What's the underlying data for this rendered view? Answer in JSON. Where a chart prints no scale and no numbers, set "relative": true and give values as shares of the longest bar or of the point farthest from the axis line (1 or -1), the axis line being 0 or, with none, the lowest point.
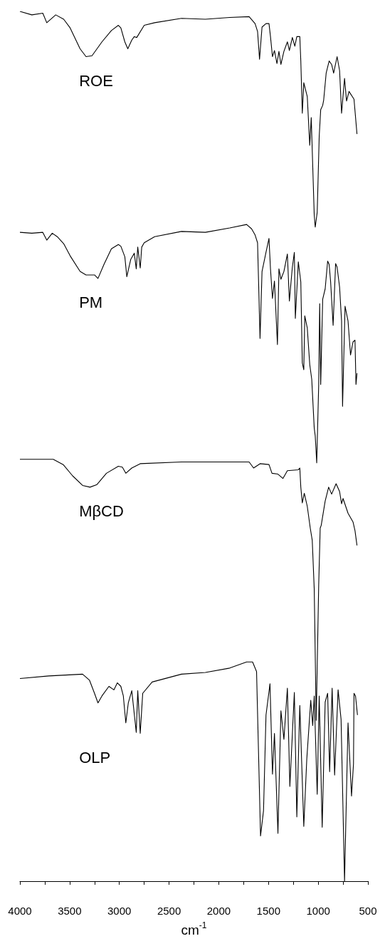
{
  "chart_data": {
    "type": "line",
    "relative": true,
    "xlabel": "cm$^{-1}$",
    "xlim": [
      4000,
      500
    ],
    "xticks": [
      4000,
      {
        "value": 3750,
        "label": null
      },
      3500,
      {
        "value": 3250,
        "label": null
      },
      3000,
      {
        "value": 2750,
        "label": null
      },
      2500,
      {
        "value": 2250,
        "label": null
      },
      2000,
      {
        "value": 1750,
        "label": null
      },
      1500,
      {
        "value": 1250,
        "label": null
      },
      1000,
      {
        "value": 750,
        "label": null
      },
      500
    ],
    "grid": false,
    "legend": false,
    "series": [
      {
        "name": "ROE",
        "color": "#000000",
        "x": [
          4000,
          3880,
          3770,
          3730,
          3640,
          3560,
          3495,
          3395,
          3335,
          3275,
          3175,
          3080,
          3010,
          2985,
          2945,
          2915,
          2875,
          2850,
          2825,
          2750,
          2645,
          2375,
          2135,
          1890,
          1695,
          1635,
          1610,
          1590,
          1565,
          1525,
          1495,
          1480,
          1460,
          1440,
          1415,
          1395,
          1375,
          1345,
          1310,
          1290,
          1260,
          1235,
          1215,
          1185,
          1175,
          1160,
          1145,
          1110,
          1085,
          1070,
          1040,
          1030,
          1010,
          990,
          975,
          955,
          945,
          920,
          890,
          865,
          845,
          810,
          785,
          765,
          735,
          715,
          690,
          640,
          610
        ],
        "values": [
          1.0,
          0.996,
          0.998,
          0.987,
          0.996,
          0.991,
          0.981,
          0.957,
          0.948,
          0.949,
          0.965,
          0.978,
          0.984,
          0.981,
          0.965,
          0.957,
          0.967,
          0.971,
          0.97,
          0.984,
          0.987,
          0.992,
          0.991,
          0.993,
          0.994,
          0.986,
          0.977,
          0.945,
          0.982,
          0.986,
          0.986,
          0.971,
          0.948,
          0.955,
          0.94,
          0.954,
          0.939,
          0.954,
          0.965,
          0.955,
          0.97,
          0.96,
          0.971,
          0.971,
          0.943,
          0.883,
          0.918,
          0.902,
          0.846,
          0.878,
          0.766,
          0.752,
          0.769,
          0.856,
          0.887,
          0.892,
          0.898,
          0.929,
          0.943,
          0.939,
          0.929,
          0.948,
          0.932,
          0.883,
          0.923,
          0.897,
          0.908,
          0.899,
          0.859
        ]
      },
      {
        "name": "PM",
        "color": "#000000",
        "x": [
          4000,
          3880,
          3770,
          3730,
          3675,
          3625,
          3560,
          3495,
          3395,
          3335,
          3250,
          3215,
          3155,
          3080,
          3010,
          2985,
          2945,
          2925,
          2885,
          2850,
          2830,
          2815,
          2790,
          2775,
          2750,
          2645,
          2375,
          2135,
          1890,
          1720,
          1670,
          1635,
          1610,
          1585,
          1565,
          1525,
          1495,
          1480,
          1460,
          1440,
          1410,
          1395,
          1375,
          1345,
          1310,
          1290,
          1260,
          1240,
          1230,
          1200,
          1175,
          1160,
          1145,
          1135,
          1110,
          1085,
          1065,
          1040,
          1030,
          1015,
          995,
          985,
          975,
          955,
          930,
          905,
          890,
          875,
          850,
          825,
          810,
          785,
          765,
          755,
          730,
          700,
          675,
          650,
          630,
          620,
          610
        ],
        "values": [
          0.746,
          0.745,
          0.746,
          0.737,
          0.745,
          0.741,
          0.733,
          0.719,
          0.701,
          0.697,
          0.697,
          0.693,
          0.709,
          0.727,
          0.732,
          0.73,
          0.718,
          0.695,
          0.715,
          0.722,
          0.704,
          0.729,
          0.705,
          0.729,
          0.734,
          0.741,
          0.747,
          0.746,
          0.751,
          0.755,
          0.75,
          0.743,
          0.734,
          0.624,
          0.701,
          0.723,
          0.739,
          0.704,
          0.67,
          0.69,
          0.617,
          0.704,
          0.692,
          0.701,
          0.721,
          0.667,
          0.706,
          0.723,
          0.647,
          0.712,
          0.689,
          0.596,
          0.588,
          0.65,
          0.636,
          0.594,
          0.577,
          0.521,
          0.512,
          0.481,
          0.571,
          0.664,
          0.571,
          0.669,
          0.681,
          0.713,
          0.709,
          0.689,
          0.639,
          0.71,
          0.706,
          0.683,
          0.644,
          0.546,
          0.661,
          0.644,
          0.605,
          0.62,
          0.622,
          0.571,
          0.584
        ]
      },
      {
        "name": "MβCD",
        "color": "#000000",
        "x": [
          4000,
          3665,
          3565,
          3470,
          3370,
          3295,
          3225,
          3130,
          3010,
          2970,
          2935,
          2875,
          2790,
          2375,
          2135,
          1890,
          1695,
          1650,
          1585,
          1495,
          1465,
          1405,
          1355,
          1310,
          1200,
          1185,
          1175,
          1160,
          1140,
          1110,
          1080,
          1060,
          1040,
          1020,
          995,
          980,
          970,
          930,
          895,
          865,
          820,
          785,
          765,
          750,
          700,
          650,
          630,
          610
        ],
        "values": [
          0.485,
          0.485,
          0.479,
          0.466,
          0.455,
          0.453,
          0.456,
          0.469,
          0.477,
          0.476,
          0.469,
          0.475,
          0.48,
          0.482,
          0.482,
          0.482,
          0.482,
          0.475,
          0.48,
          0.479,
          0.469,
          0.468,
          0.463,
          0.472,
          0.473,
          0.475,
          0.453,
          0.435,
          0.446,
          0.431,
          0.406,
          0.392,
          0.336,
          0.185,
          0.341,
          0.406,
          0.409,
          0.437,
          0.453,
          0.445,
          0.457,
          0.448,
          0.434,
          0.44,
          0.423,
          0.413,
          0.403,
          0.386
        ]
      },
      {
        "name": "OLP",
        "color": "#000000",
        "x": [
          4000,
          3710,
          3370,
          3300,
          3250,
          3215,
          3175,
          3105,
          3055,
          3020,
          2985,
          2960,
          2935,
          2910,
          2875,
          2830,
          2815,
          2790,
          2765,
          2670,
          2375,
          2135,
          1890,
          1720,
          1660,
          1620,
          1580,
          1550,
          1525,
          1485,
          1460,
          1440,
          1405,
          1375,
          1345,
          1310,
          1285,
          1240,
          1215,
          1185,
          1145,
          1115,
          1075,
          1055,
          1040,
          1010,
          990,
          960,
          930,
          905,
          885,
          860,
          835,
          800,
          770,
          735,
          700,
          665,
          645,
          640,
          625,
          605
        ],
        "values": [
          0.233,
          0.236,
          0.238,
          0.231,
          0.216,
          0.205,
          0.213,
          0.224,
          0.22,
          0.228,
          0.224,
          0.213,
          0.182,
          0.205,
          0.219,
          0.171,
          0.219,
          0.17,
          0.216,
          0.229,
          0.238,
          0.24,
          0.245,
          0.252,
          0.252,
          0.241,
          0.052,
          0.081,
          0.191,
          0.227,
          0.123,
          0.17,
          0.055,
          0.196,
          0.163,
          0.222,
          0.109,
          0.217,
          0.074,
          0.202,
          0.063,
          0.14,
          0.208,
          0.179,
          0.213,
          0.1,
          0.213,
          0.062,
          0.206,
          0.216,
          0.126,
          0.222,
          0.122,
          0.22,
          0.186,
          0.0,
          0.182,
          0.098,
          0.135,
          0.216,
          0.213,
          0.191
        ]
      }
    ]
  }
}
